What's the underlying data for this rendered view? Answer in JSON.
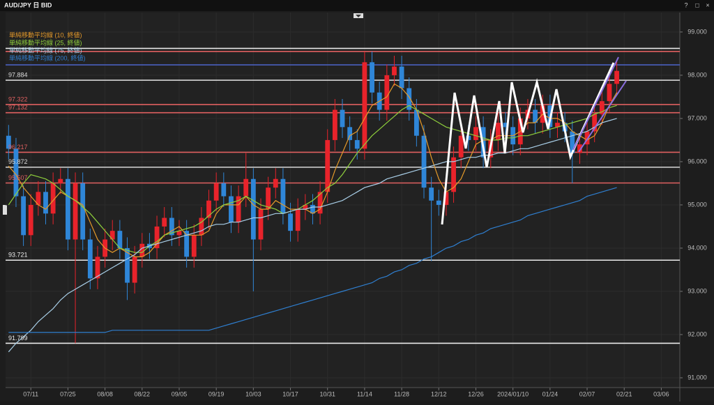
{
  "window": {
    "title": "AUD/JPY 日 BID",
    "controls": [
      "?",
      "□",
      "×"
    ]
  },
  "chart_data": {
    "type": "candlestick",
    "categories": [
      null,
      null,
      null,
      "07/11",
      null,
      null,
      null,
      null,
      "07/25",
      null,
      null,
      null,
      null,
      "08/08",
      null,
      null,
      null,
      null,
      "08/22",
      null,
      null,
      null,
      null,
      "09/05",
      null,
      null,
      null,
      null,
      "09/19",
      null,
      null,
      null,
      null,
      "10/03",
      null,
      null,
      null,
      null,
      "10/17",
      null,
      null,
      null,
      null,
      "10/31",
      null,
      null,
      null,
      null,
      "11/14",
      null,
      null,
      null,
      null,
      "11/28",
      null,
      null,
      null,
      null,
      "12/12",
      null,
      null,
      null,
      null,
      "12/26",
      null,
      null,
      null,
      null,
      "2024/01/10",
      null,
      null,
      null,
      null,
      "01/24",
      null,
      null,
      null,
      null,
      "02/07",
      null,
      null,
      null,
      null,
      "02/21",
      null,
      null,
      null,
      null,
      "03/06",
      null,
      null
    ],
    "open": [
      96.6,
      96.3,
      95.2,
      94.3,
      95.0,
      95.3,
      94.8,
      95.5,
      95.6,
      94.2,
      95.5,
      94.2,
      93.3,
      93.8,
      94.2,
      94.4,
      94.0,
      93.2,
      93.8,
      94.1,
      94.0,
      94.5,
      94.7,
      94.3,
      94.4,
      93.8,
      94.3,
      94.7,
      95.1,
      95.5,
      95.2,
      94.6,
      95.2,
      95.6,
      94.2,
      94.9,
      95.4,
      95.6,
      94.8,
      94.4,
      94.9,
      95.0,
      94.8,
      95.3,
      96.5,
      97.2,
      96.8,
      96.5,
      96.3,
      98.3,
      97.6,
      97.2,
      98.0,
      98.2,
      97.7,
      97.2,
      96.6,
      95.4,
      95.1,
      95.0,
      95.3,
      96.1,
      96.6,
      96.5,
      96.8,
      96.1,
      96.5,
      96.9,
      96.8,
      96.4,
      97.0,
      97.2,
      96.9,
      97.3,
      96.8,
      96.9,
      96.7,
      96.2,
      96.4,
      96.7,
      97.1,
      97.4,
      97.8,
      null,
      null,
      null,
      null,
      null,
      null,
      null,
      null
    ],
    "high": [
      96.85,
      96.55,
      95.45,
      95.25,
      95.55,
      95.55,
      95.75,
      95.85,
      95.85,
      95.75,
      95.75,
      94.45,
      94.05,
      94.45,
      94.65,
      94.65,
      94.25,
      94.05,
      94.35,
      94.35,
      94.75,
      94.95,
      94.95,
      94.65,
      94.65,
      94.55,
      94.95,
      95.35,
      95.75,
      95.75,
      95.45,
      95.45,
      96.2,
      95.85,
      95.15,
      95.65,
      95.85,
      95.85,
      95.05,
      95.15,
      95.25,
      95.25,
      95.55,
      96.75,
      97.45,
      97.45,
      97.05,
      96.75,
      98.55,
      98.55,
      97.85,
      98.25,
      98.45,
      98.45,
      97.95,
      97.45,
      96.85,
      95.65,
      95.35,
      95.55,
      96.35,
      96.85,
      96.85,
      97.05,
      97.05,
      96.75,
      97.15,
      97.15,
      97.05,
      97.25,
      97.45,
      97.45,
      97.55,
      97.55,
      97.15,
      97.15,
      96.95,
      96.65,
      96.95,
      97.35,
      97.65,
      98.05,
      98.35,
      null,
      null,
      null,
      null,
      null,
      null,
      null,
      null
    ],
    "low": [
      96.05,
      94.95,
      94.05,
      94.05,
      94.75,
      94.55,
      94.55,
      95.25,
      93.95,
      91.8,
      93.95,
      93.05,
      93.05,
      93.55,
      93.95,
      93.75,
      92.8,
      92.95,
      93.55,
      93.75,
      93.75,
      94.25,
      94.05,
      94.05,
      93.55,
      93.55,
      94.05,
      94.45,
      94.85,
      94.95,
      94.35,
      94.35,
      94.95,
      93.0,
      93.95,
      94.65,
      95.15,
      94.55,
      94.15,
      94.15,
      94.65,
      94.55,
      94.55,
      95.05,
      96.25,
      96.55,
      96.25,
      96.05,
      96.05,
      97.35,
      96.95,
      96.95,
      97.75,
      97.45,
      96.95,
      96.35,
      95.15,
      93.7,
      94.75,
      94.75,
      95.05,
      95.85,
      96.25,
      96.25,
      95.85,
      95.85,
      96.25,
      96.55,
      96.15,
      96.15,
      96.75,
      96.65,
      96.65,
      96.55,
      96.55,
      96.45,
      95.5,
      95.95,
      96.15,
      96.45,
      96.85,
      97.15,
      97.55,
      null,
      null,
      null,
      null,
      null,
      null,
      null,
      null
    ],
    "close": [
      96.3,
      95.2,
      94.3,
      95.0,
      95.3,
      94.8,
      95.5,
      95.6,
      94.2,
      95.5,
      94.2,
      93.3,
      93.8,
      94.2,
      94.4,
      94.0,
      93.2,
      93.8,
      94.1,
      94.0,
      94.5,
      94.7,
      94.3,
      94.4,
      93.8,
      94.3,
      94.7,
      95.1,
      95.5,
      95.2,
      94.6,
      95.2,
      95.6,
      94.2,
      94.9,
      95.4,
      95.6,
      94.8,
      94.4,
      94.9,
      95.0,
      94.8,
      95.3,
      96.5,
      97.2,
      96.8,
      96.5,
      96.3,
      98.3,
      97.6,
      97.2,
      98.0,
      98.2,
      97.7,
      97.2,
      96.6,
      95.4,
      95.1,
      95.0,
      95.3,
      96.1,
      96.6,
      96.5,
      96.8,
      96.1,
      96.5,
      96.9,
      96.8,
      96.4,
      97.0,
      97.2,
      96.9,
      97.3,
      96.8,
      96.9,
      96.7,
      96.2,
      96.4,
      96.7,
      97.1,
      97.4,
      97.8,
      98.1,
      null,
      null,
      null,
      null,
      null,
      null,
      null,
      null
    ],
    "up_color": "#e8232b",
    "down_color": "#2f86d8",
    "series": [
      {
        "name": "単純移動平均線 (10, 終値)",
        "color": "#e59a2a",
        "values": [
          95.9,
          95.7,
          95.4,
          95.2,
          95.0,
          94.9,
          95.1,
          95.3,
          95.2,
          95.1,
          95.0,
          94.6,
          94.2,
          94.0,
          93.9,
          94.0,
          93.9,
          93.8,
          93.8,
          93.9,
          94.1,
          94.3,
          94.4,
          94.5,
          94.3,
          94.3,
          94.3,
          94.4,
          94.8,
          95.0,
          95.0,
          95.0,
          95.2,
          95.0,
          94.9,
          94.9,
          95.1,
          95.0,
          94.9,
          94.9,
          94.9,
          94.8,
          94.9,
          95.3,
          95.8,
          96.2,
          96.6,
          96.7,
          97.0,
          97.3,
          97.4,
          97.5,
          97.8,
          97.7,
          97.5,
          97.2,
          96.7,
          96.1,
          95.6,
          95.3,
          95.4,
          95.6,
          96.0,
          96.4,
          96.5,
          96.5,
          96.6,
          96.6,
          96.6,
          96.7,
          96.9,
          96.9,
          97.1,
          97.0,
          97.0,
          96.9,
          96.7,
          96.6,
          96.5,
          96.6,
          96.9,
          97.3,
          97.6,
          null,
          null,
          null,
          null,
          null,
          null,
          null,
          null
        ]
      },
      {
        "name": "単純移動平均線 (25, 終値)",
        "color": "#8fcf3c",
        "values": [
          95.0,
          95.25,
          95.5,
          95.7,
          95.65,
          95.6,
          95.5,
          95.35,
          95.2,
          95.1,
          94.95,
          94.8,
          94.6,
          94.4,
          94.2,
          94.0,
          93.95,
          93.9,
          93.9,
          94.05,
          94.15,
          94.3,
          94.35,
          94.4,
          94.45,
          94.5,
          94.6,
          94.75,
          94.9,
          95.0,
          95.05,
          95.1,
          95.2,
          95.1,
          95.0,
          94.95,
          94.9,
          94.8,
          94.85,
          94.9,
          95.0,
          95.1,
          95.25,
          95.4,
          95.5,
          95.7,
          95.95,
          96.2,
          96.4,
          96.6,
          96.75,
          96.9,
          97.05,
          97.2,
          97.3,
          97.2,
          97.1,
          97.0,
          96.9,
          96.8,
          96.75,
          96.7,
          96.65,
          96.6,
          96.55,
          96.5,
          96.5,
          96.55,
          96.55,
          96.6,
          96.6,
          96.65,
          96.7,
          96.75,
          96.8,
          96.85,
          96.9,
          96.95,
          97.0,
          97.1,
          97.15,
          97.25,
          97.3,
          null,
          null,
          null,
          null,
          null,
          null,
          null,
          null
        ]
      },
      {
        "name": "単純移動平均線 (75, 終値)",
        "color": "#a9cfe8",
        "values": [
          91.6,
          91.8,
          91.95,
          92.1,
          92.3,
          92.45,
          92.6,
          92.8,
          92.95,
          93.05,
          93.15,
          93.25,
          93.35,
          93.45,
          93.55,
          93.65,
          93.75,
          93.85,
          94.0,
          94.05,
          94.1,
          94.15,
          94.2,
          94.25,
          94.3,
          94.35,
          94.4,
          94.5,
          94.55,
          94.55,
          94.6,
          94.6,
          94.65,
          94.7,
          94.7,
          94.75,
          94.8,
          94.8,
          94.85,
          94.9,
          94.9,
          94.95,
          94.95,
          95.0,
          95.05,
          95.1,
          95.2,
          95.3,
          95.4,
          95.45,
          95.5,
          95.6,
          95.65,
          95.7,
          95.75,
          95.8,
          95.85,
          95.9,
          95.95,
          96.0,
          96.0,
          96.05,
          96.1,
          96.1,
          96.15,
          96.15,
          96.2,
          96.2,
          96.25,
          96.3,
          96.3,
          96.35,
          96.4,
          96.45,
          96.5,
          96.55,
          96.6,
          96.65,
          96.7,
          96.8,
          96.9,
          96.95,
          97.0,
          null,
          null,
          null,
          null,
          null,
          null,
          null,
          null
        ]
      },
      {
        "name": "単純移動平均線 (200, 終値)",
        "color": "#2f7fd0",
        "values": [
          92.05,
          92.05,
          92.05,
          92.05,
          92.05,
          92.05,
          92.05,
          92.05,
          92.05,
          92.05,
          92.05,
          92.05,
          92.05,
          92.05,
          92.1,
          92.1,
          92.1,
          92.1,
          92.1,
          92.1,
          92.1,
          92.1,
          92.1,
          92.1,
          92.1,
          92.1,
          92.1,
          92.1,
          92.15,
          92.2,
          92.25,
          92.3,
          92.35,
          92.4,
          92.45,
          92.5,
          92.55,
          92.6,
          92.65,
          92.7,
          92.75,
          92.8,
          92.85,
          92.9,
          92.95,
          93.0,
          93.05,
          93.1,
          93.15,
          93.2,
          93.3,
          93.35,
          93.45,
          93.5,
          93.6,
          93.65,
          93.75,
          93.8,
          93.9,
          94.0,
          94.05,
          94.15,
          94.2,
          94.3,
          94.35,
          94.45,
          94.5,
          94.55,
          94.6,
          94.65,
          94.75,
          94.8,
          94.85,
          94.9,
          94.95,
          95.0,
          95.05,
          95.1,
          95.2,
          95.25,
          95.3,
          95.35,
          95.4,
          null,
          null,
          null,
          null,
          null,
          null,
          null,
          null
        ]
      }
    ],
    "levels": [
      {
        "value": 98.62,
        "color": "#e8e8e8",
        "show_label": false
      },
      {
        "value": 98.55,
        "color": "#e06060",
        "show_label": false
      },
      {
        "value": 98.24,
        "color": "#4a5fc0",
        "show_label": false
      },
      {
        "value": 97.884,
        "color": "#d8d8d8",
        "show_label": true
      },
      {
        "value": 97.322,
        "color": "#e06060",
        "show_label": true
      },
      {
        "value": 97.132,
        "color": "#e06060",
        "show_label": true
      },
      {
        "value": 96.217,
        "color": "#e06060",
        "show_label": true
      },
      {
        "value": 95.872,
        "color": "#d8d8d8",
        "show_label": true
      },
      {
        "value": 95.507,
        "color": "#e06060",
        "show_label": true
      },
      {
        "value": 93.721,
        "color": "#ececec",
        "show_label": true
      },
      {
        "value": 91.799,
        "color": "#ececec",
        "show_label": true
      }
    ],
    "ylim": [
      90.79,
      99.45
    ],
    "yticks": [
      {
        "value": 91,
        "label": "91.000"
      },
      {
        "value": 92,
        "label": "92.000"
      },
      {
        "value": 93,
        "label": "93.000"
      },
      {
        "value": 94,
        "label": "94.000"
      },
      {
        "value": 95,
        "label": "95.000"
      },
      {
        "value": 96,
        "label": "96.000"
      },
      {
        "value": 97,
        "label": "97.000"
      },
      {
        "value": 98,
        "label": "98.000"
      },
      {
        "value": 99,
        "label": "99.000"
      }
    ],
    "grid": true
  }
}
